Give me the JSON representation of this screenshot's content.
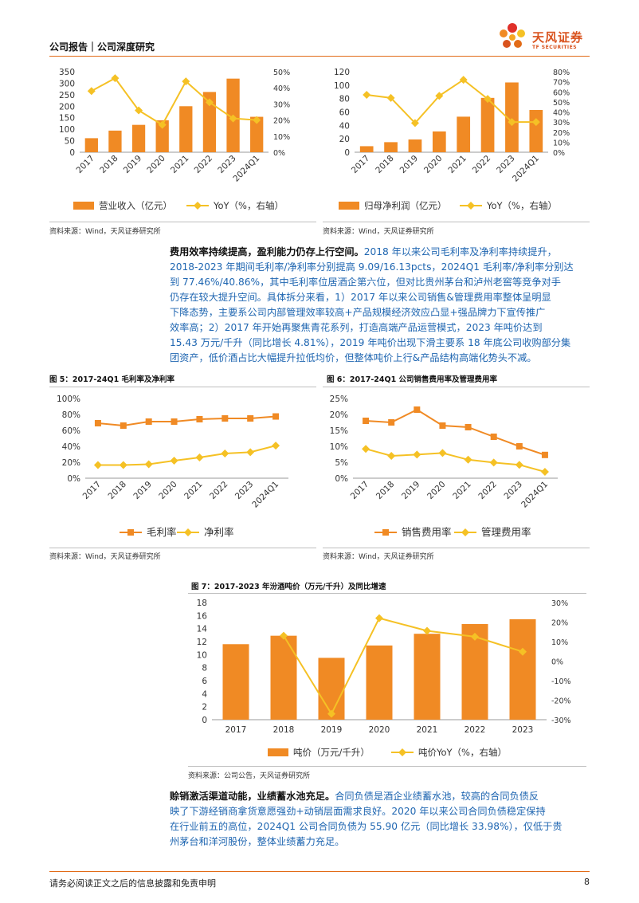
{
  "header": {
    "title": "公司报告｜公司深度研究",
    "logo_cn": "天风证券",
    "logo_en": "TF SECURITIES"
  },
  "sources": {
    "s1": "资料来源：Wind，天风证券研究所",
    "s2": "资料来源：Wind，天风证券研究所",
    "s3": "资料来源：Wind，天风证券研究所",
    "s4": "资料来源：Wind，天风证券研究所",
    "s5": "资料来源：公司公告，天风证券研究所"
  },
  "paragraph1": {
    "lead": "费用效率持续提高，盈利能力仍存上行空间。",
    "lines": [
      "2018 年以来公司毛利率及净利率持续提升，",
      "2018-2023 年期间毛利率/净利率分别提高 9.09/16.13pcts，2024Q1 毛利率/净利率分别达",
      "到 77.46%/40.86%，其中毛利率位居酒企第六位，但对比贵州茅台和泸州老窖等竞争对手",
      "仍存在较大提升空间。具体拆分来看，1）2017 年以来公司销售&管理费用率整体呈明显",
      "下降态势，主要系公司内部管理效率较高+产品规模经济效应凸显+强品牌力下宣传推广",
      "效率高；2）2017 年开始再聚焦青花系列，打造高端产品运营模式，2023 年吨价达到",
      "15.43 万元/千升（同比增长 4.81%），2019 年吨价出现下滑主要系 18 年底公司收购部分集",
      "团资产，低价酒占比大幅提升拉低均价，但整体吨价上行&产品结构高端化势头不减。"
    ]
  },
  "paragraph2": {
    "lead": "赊销激活渠道动能，业绩蓄水池充足。",
    "lines": [
      "合同负债是酒企业绩蓄水池，较高的合同负债反",
      "映了下游经销商拿货意愿强劲+动销层面需求良好。2020 年以来公司合同负债稳定保持",
      "在行业前五的高位，2024Q1 公司合同负债为 55.90 亿元（同比增长 33.98%），仅低于贵",
      "州茅台和洋河股份，整体业绩蓄力充足。"
    ]
  },
  "footer": {
    "disclaimer": "请务必阅读正文之后的信息披露和免责申明",
    "page": "8"
  },
  "colors": {
    "bar": "#f08a24",
    "line": "#f5c125",
    "accent": "#e26b17"
  },
  "chart_data": [
    {
      "id": "revenue",
      "type": "bar+line",
      "categories": [
        "2017",
        "2018",
        "2019",
        "2020",
        "2021",
        "2022",
        "2023",
        "2024Q1"
      ],
      "series": [
        {
          "name": "营业收入（亿元）",
          "type": "bar",
          "axis": "left",
          "values": [
            61,
            94,
            119,
            139,
            200,
            262,
            320,
            154
          ]
        },
        {
          "name": "YoY（%，右轴）",
          "type": "line",
          "axis": "right",
          "values": [
            38,
            46,
            26,
            17,
            44,
            31,
            21,
            20
          ]
        }
      ],
      "y_left": {
        "min": 0,
        "max": 350,
        "ticks": [
          "0",
          "50",
          "100",
          "150",
          "200",
          "250",
          "300",
          "350"
        ]
      },
      "y_right": {
        "min": 0,
        "max": 50,
        "ticks": [
          "0%",
          "10%",
          "20%",
          "30%",
          "40%",
          "50%"
        ]
      },
      "legend": "bottom"
    },
    {
      "id": "netprofit",
      "type": "bar+line",
      "categories": [
        "2017",
        "2018",
        "2019",
        "2020",
        "2021",
        "2022",
        "2023",
        "2024Q1"
      ],
      "series": [
        {
          "name": "归母净利润（亿元）",
          "type": "bar",
          "axis": "left",
          "values": [
            9,
            15,
            19,
            31,
            53,
            81,
            104,
            63
          ]
        },
        {
          "name": "YoY（%，右轴）",
          "type": "line",
          "axis": "right",
          "values": [
            57,
            54,
            29,
            56,
            72,
            53,
            30,
            30
          ]
        }
      ],
      "y_left": {
        "min": 0,
        "max": 120,
        "ticks": [
          "0",
          "20",
          "40",
          "60",
          "80",
          "100",
          "120"
        ]
      },
      "y_right": {
        "min": 0,
        "max": 80,
        "ticks": [
          "0%",
          "10%",
          "20%",
          "30%",
          "40%",
          "50%",
          "60%",
          "70%",
          "80%"
        ]
      },
      "legend": "bottom"
    },
    {
      "id": "margins",
      "type": "line",
      "title": "图 5：2017-24Q1 毛利率及净利率",
      "categories": [
        "2017",
        "2018",
        "2019",
        "2020",
        "2021",
        "2022",
        "2023",
        "2024Q1"
      ],
      "series": [
        {
          "name": "毛利率",
          "color": "#f08a24",
          "marker": "square",
          "values": [
            69,
            66,
            71,
            71,
            74,
            75,
            75,
            77.46
          ]
        },
        {
          "name": "净利率",
          "color": "#f5c125",
          "marker": "diamond",
          "values": [
            16.5,
            16.5,
            17.5,
            22,
            26,
            31,
            32.6,
            40.86
          ]
        }
      ],
      "y": {
        "min": 0,
        "max": 100,
        "ticks": [
          "0%",
          "20%",
          "40%",
          "60%",
          "80%",
          "100%"
        ]
      },
      "legend": "bottom"
    },
    {
      "id": "expenses",
      "type": "line",
      "title": "图 6：2017-24Q1 公司销售费用率及管理费用率",
      "categories": [
        "2017",
        "2018",
        "2019",
        "2020",
        "2021",
        "2022",
        "2023",
        "2024Q1"
      ],
      "series": [
        {
          "name": "销售费用率",
          "color": "#f08a24",
          "marker": "square",
          "values": [
            18,
            17.5,
            21.5,
            16.5,
            16,
            13,
            10,
            7.3
          ]
        },
        {
          "name": "管理费用率",
          "color": "#f5c125",
          "marker": "diamond",
          "values": [
            9.2,
            7,
            7.4,
            7.9,
            5.8,
            4.9,
            4.2,
            2
          ]
        }
      ],
      "y": {
        "min": 0,
        "max": 25,
        "ticks": [
          "0%",
          "5%",
          "10%",
          "15%",
          "20%",
          "25%"
        ]
      },
      "legend": "bottom"
    },
    {
      "id": "tonprice",
      "type": "bar+line",
      "title": "图 7：2017-2023 年汾酒吨价（万元/千升）及同比增速",
      "categories": [
        "2017",
        "2018",
        "2019",
        "2020",
        "2021",
        "2022",
        "2023"
      ],
      "series": [
        {
          "name": "吨价（万元/千升）",
          "type": "bar",
          "axis": "left",
          "values": [
            11.6,
            12.9,
            9.5,
            11.4,
            13.2,
            14.7,
            15.43
          ]
        },
        {
          "name": "吨价YoY（%，右轴）",
          "type": "line",
          "axis": "right",
          "values": [
            null,
            13,
            -27,
            22,
            15.5,
            12.5,
            4.81
          ]
        }
      ],
      "y_left": {
        "min": 0,
        "max": 18,
        "ticks": [
          "0",
          "2",
          "4",
          "6",
          "8",
          "10",
          "12",
          "14",
          "16",
          "18"
        ]
      },
      "y_right": {
        "min": -30,
        "max": 30,
        "ticks": [
          "-30%",
          "-20%",
          "-10%",
          "0%",
          "10%",
          "20%",
          "30%"
        ]
      },
      "legend": "bottom"
    }
  ]
}
